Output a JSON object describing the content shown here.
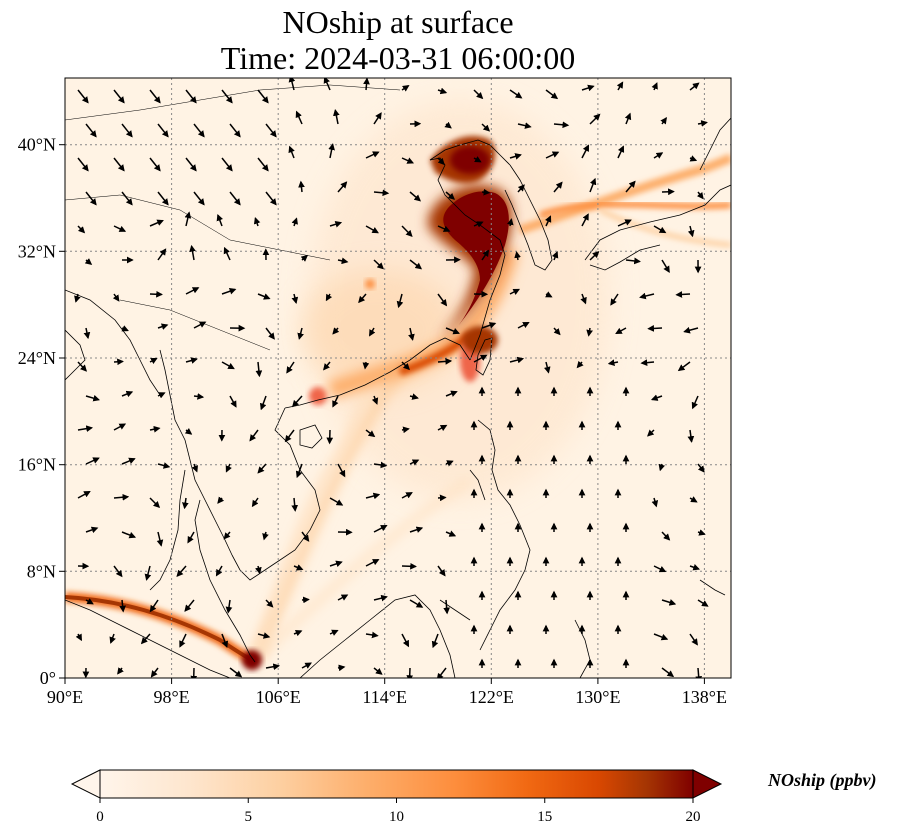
{
  "title": "NOship at surface",
  "subtitle": "Time: 2024-03-31 06:00:00",
  "map": {
    "lon_range": [
      90,
      140
    ],
    "lat_range": [
      0,
      45
    ],
    "lon_ticks": [
      90,
      98,
      106,
      114,
      122,
      130,
      138
    ],
    "lon_tick_labels": [
      "90°E",
      "98°E",
      "106°E",
      "114°E",
      "122°E",
      "130°E",
      "138°E"
    ],
    "lat_ticks": [
      0,
      8,
      16,
      24,
      32,
      40
    ],
    "lat_tick_labels": [
      "0°",
      "8°N",
      "16°N",
      "24°N",
      "32°N",
      "40°N"
    ],
    "gridlines": "dotted",
    "field": "NOship surface concentration shaded, wind vectors overlaid",
    "colormap": [
      "#fff5eb",
      "#fee6ce",
      "#fdd0a2",
      "#fdae6b",
      "#fd8d3c",
      "#f16913",
      "#d94801",
      "#a63603",
      "#7f0000"
    ],
    "vector_color": "#000000",
    "coastline_color": "#000000"
  },
  "colorbar": {
    "label": "NOship (ppbv)",
    "ticks": [
      0,
      5,
      10,
      15,
      20
    ],
    "tick_labels": [
      "0",
      "5",
      "10",
      "15",
      "20"
    ],
    "range": [
      0,
      20
    ],
    "extend": "both",
    "orientation": "horizontal"
  }
}
